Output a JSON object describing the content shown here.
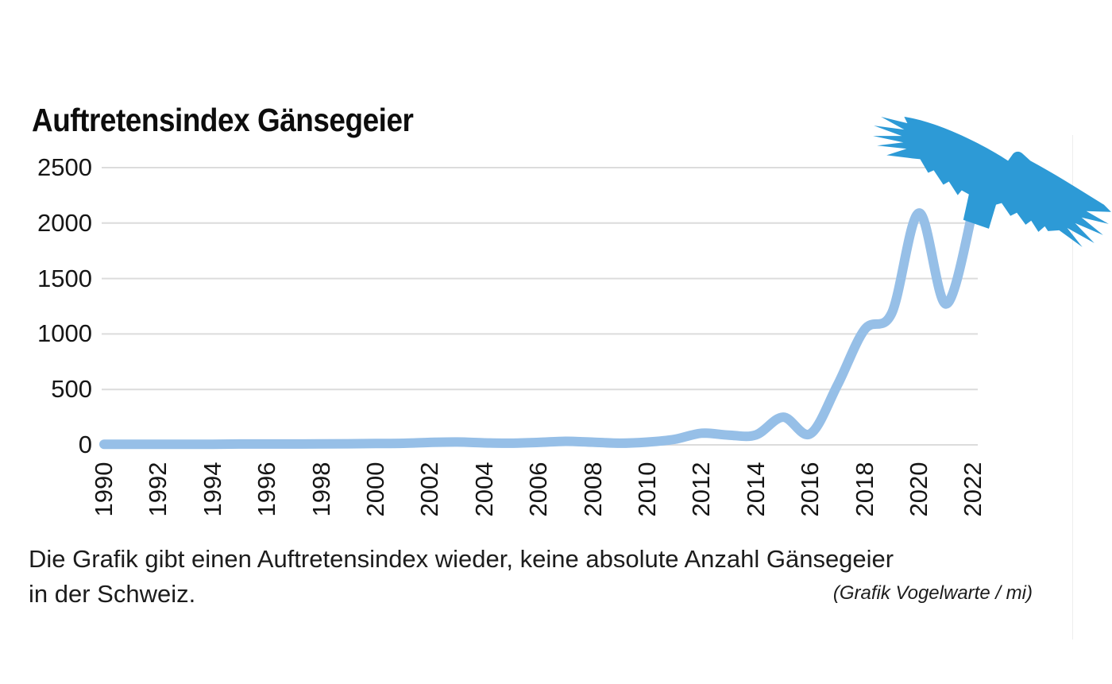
{
  "title": "Auftretensindex Gänsegeier",
  "caption": {
    "line1": "Die Grafik gibt einen Auftretensindex wieder, keine absolute Anzahl Gänsegeier",
    "line2": "in der Schweiz.",
    "credit": "(Grafik Vogelwarte / mi)"
  },
  "colors": {
    "line": "#96bfe7",
    "vulture": "#2d9ad6",
    "grid": "#dcdcdc",
    "text": "#111111",
    "frame": "#ededed"
  },
  "icons": {
    "vulture": "vulture-silhouette"
  },
  "chart_data": {
    "type": "line",
    "title": "Auftretensindex Gänsegeier",
    "series_name": "Auftretensindex Gänsegeier",
    "x": [
      1990,
      1991,
      1992,
      1993,
      1994,
      1995,
      1996,
      1997,
      1998,
      1999,
      2000,
      2001,
      2002,
      2003,
      2004,
      2005,
      2006,
      2007,
      2008,
      2009,
      2010,
      2011,
      2012,
      2013,
      2014,
      2015,
      2016,
      2017,
      2018,
      2019,
      2020,
      2021,
      2022
    ],
    "values": [
      5,
      5,
      5,
      5,
      6,
      8,
      8,
      8,
      9,
      10,
      12,
      14,
      22,
      26,
      18,
      15,
      22,
      32,
      24,
      15,
      25,
      50,
      105,
      88,
      90,
      250,
      100,
      540,
      1040,
      1190,
      2090,
      1270,
      2130
    ],
    "x_tick_labels": [
      "1990",
      "1992",
      "1994",
      "1996",
      "1998",
      "2000",
      "2002",
      "2004",
      "2006",
      "2008",
      "2010",
      "2012",
      "2014",
      "2016",
      "2018",
      "2020",
      "2022"
    ],
    "y_ticks": [
      0,
      500,
      1000,
      1500,
      2000,
      2500
    ],
    "xlim": [
      1990,
      2022
    ],
    "ylim": [
      0,
      2500
    ],
    "grid": "horizontal-only",
    "legend": "none",
    "xlabel": "",
    "ylabel": ""
  }
}
